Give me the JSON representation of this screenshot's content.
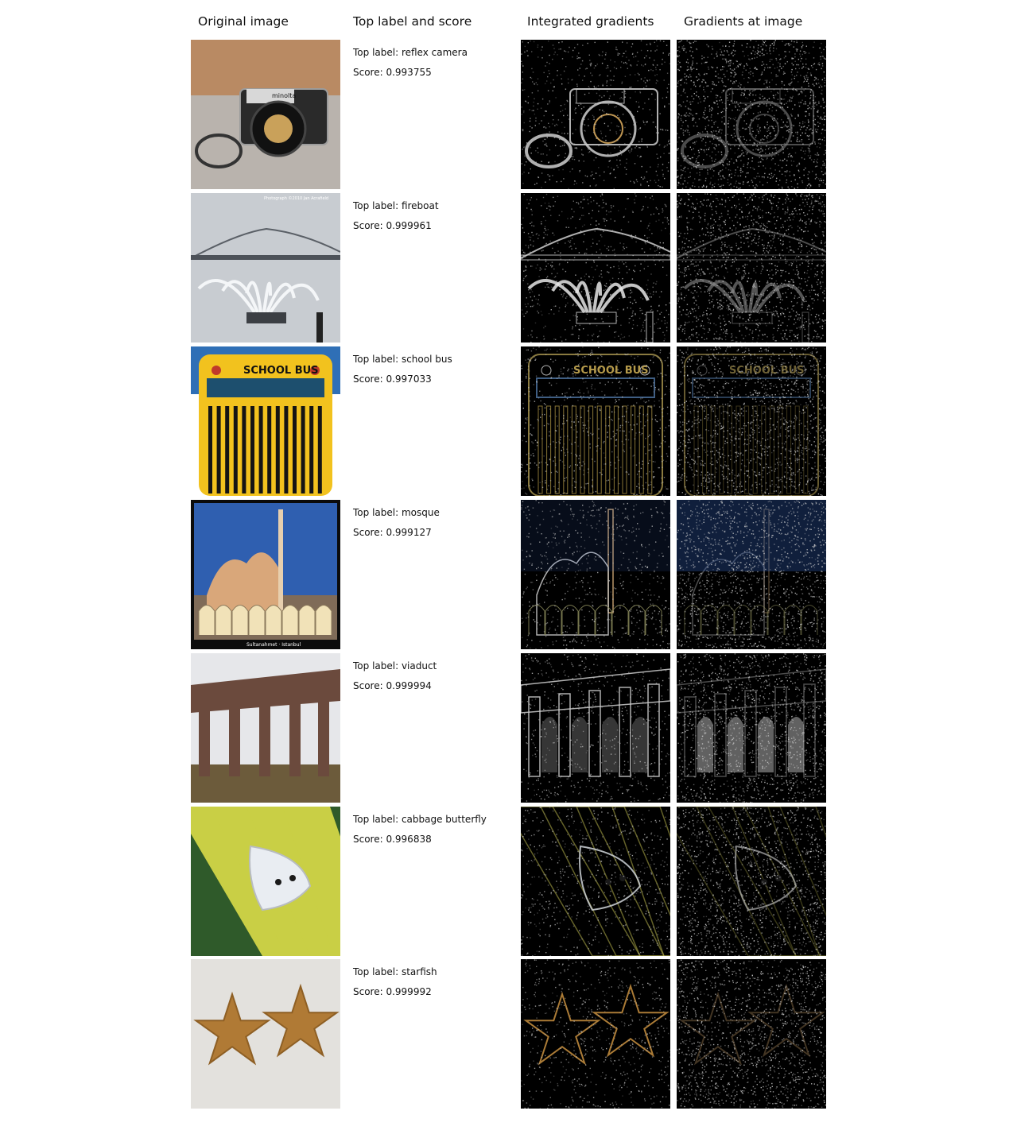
{
  "headers": {
    "original": "Original image",
    "label_score": "Top label and score",
    "integrated": "Integrated gradients",
    "gradients": "Gradients at image"
  },
  "rows": [
    {
      "id": "camera",
      "top_label": "Top label: reflex camera",
      "score": "Score: 0.993755",
      "subject": "camera",
      "palette": {
        "sky": "#b98a63",
        "ground": "#b9b3ad",
        "accent": "#1b1b1b",
        "glint": "#c9a15a"
      },
      "image_text": [
        "minolta"
      ]
    },
    {
      "id": "fireboat",
      "top_label": "Top label: fireboat",
      "score": "Score: 0.999961",
      "subject": "fireboat",
      "palette": {
        "sky": "#c8ccd1",
        "ground": "#c3c6ca",
        "accent": "#3c3f44",
        "glint": "#ffffff"
      },
      "image_text": [
        "Photograph ©2010 Jan Acrafield"
      ]
    },
    {
      "id": "bus",
      "top_label": "Top label: school bus",
      "score": "Score: 0.997033",
      "subject": "bus",
      "palette": {
        "sky": "#2f6fb6",
        "ground": "#f2c21e",
        "accent": "#111111",
        "glint": "#d8a93c"
      },
      "image_text": [
        "SCHOOL BUS"
      ]
    },
    {
      "id": "mosque",
      "top_label": "Top label: mosque",
      "score": "Score: 0.999127",
      "subject": "mosque",
      "palette": {
        "sky": "#2f5fb0",
        "ground": "#7f6b58",
        "accent": "#d9a77a",
        "glint": "#3b6fd8"
      },
      "image_text": [
        "Sultanahmet · Istanbul"
      ]
    },
    {
      "id": "viaduct",
      "top_label": "Top label: viaduct",
      "score": "Score: 0.999994",
      "subject": "viaduct",
      "palette": {
        "sky": "#e6e7ea",
        "ground": "#6c5b3b",
        "accent": "#6b4a3d",
        "glint": "#ffffff"
      },
      "image_text": []
    },
    {
      "id": "butterfly",
      "top_label": "Top label: cabbage butterfly",
      "score": "Score: 0.996838",
      "subject": "butterfly",
      "palette": {
        "sky": "#2f5a2a",
        "ground": "#c9cf45",
        "accent": "#e9edf2",
        "glint": "#b7b34a"
      },
      "image_text": []
    },
    {
      "id": "starfish",
      "top_label": "Top label: starfish",
      "score": "Score: 0.999992",
      "subject": "starfish",
      "palette": {
        "sky": "#dcdad6",
        "ground": "#e3e1dd",
        "accent": "#b07a35",
        "glint": "#c9913f"
      },
      "image_text": []
    }
  ]
}
